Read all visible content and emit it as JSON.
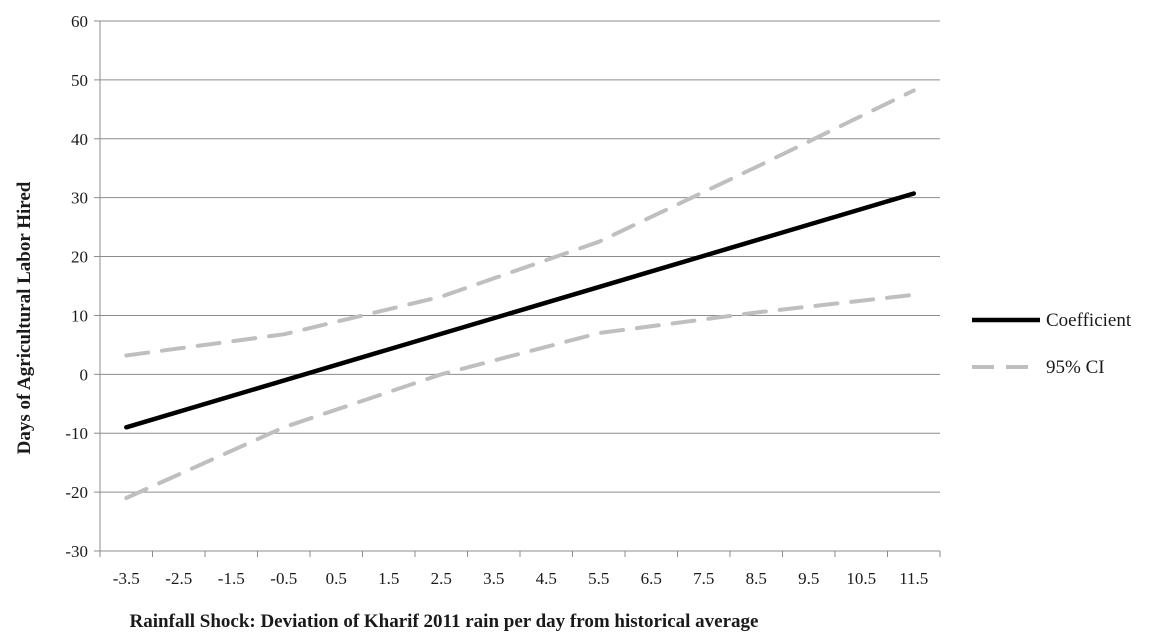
{
  "chart_data": {
    "type": "line",
    "title": "",
    "xlabel": "Rainfall Shock: Deviation of Kharif 2011 rain per day from historical average",
    "ylabel": "Days of Agricultural Labor Hired",
    "x": [
      -3.5,
      -2.5,
      -1.5,
      -0.5,
      0.5,
      1.5,
      2.5,
      3.5,
      4.5,
      5.5,
      6.5,
      7.5,
      8.5,
      9.5,
      10.5,
      11.5
    ],
    "x_tick_labels": [
      "-3.5",
      "-2.5",
      "-1.5",
      "-0.5",
      "0.5",
      "1.5",
      "2.5",
      "3.5",
      "4.5",
      "5.5",
      "6.5",
      "7.5",
      "8.5",
      "9.5",
      "10.5",
      "11.5"
    ],
    "xlim": [
      -4,
      12
    ],
    "ylim": [
      -30,
      60
    ],
    "y_ticks": [
      -30,
      -20,
      -10,
      0,
      10,
      20,
      30,
      40,
      50,
      60
    ],
    "grid": true,
    "legend_position": "right",
    "series": [
      {
        "name": "Coefficient",
        "style": "solid",
        "color": "#000000",
        "points": [
          [
            -3.5,
            -9
          ],
          [
            11.5,
            30.7
          ]
        ]
      },
      {
        "name": "95% CI",
        "style": "dashed",
        "color": "#bfbfbf",
        "points": [
          [
            -3.5,
            3.2
          ],
          [
            -0.5,
            6.8
          ],
          [
            2.5,
            13.2
          ],
          [
            5.5,
            22.5
          ],
          [
            8.5,
            35.2
          ],
          [
            11.5,
            48.2
          ]
        ]
      },
      {
        "name": "",
        "style": "dashed",
        "color": "#bfbfbf",
        "points": [
          [
            -3.5,
            -21
          ],
          [
            -0.5,
            -9
          ],
          [
            2.5,
            0
          ],
          [
            5.5,
            7
          ],
          [
            8.5,
            10.5
          ],
          [
            11.5,
            13.5
          ]
        ]
      }
    ]
  }
}
